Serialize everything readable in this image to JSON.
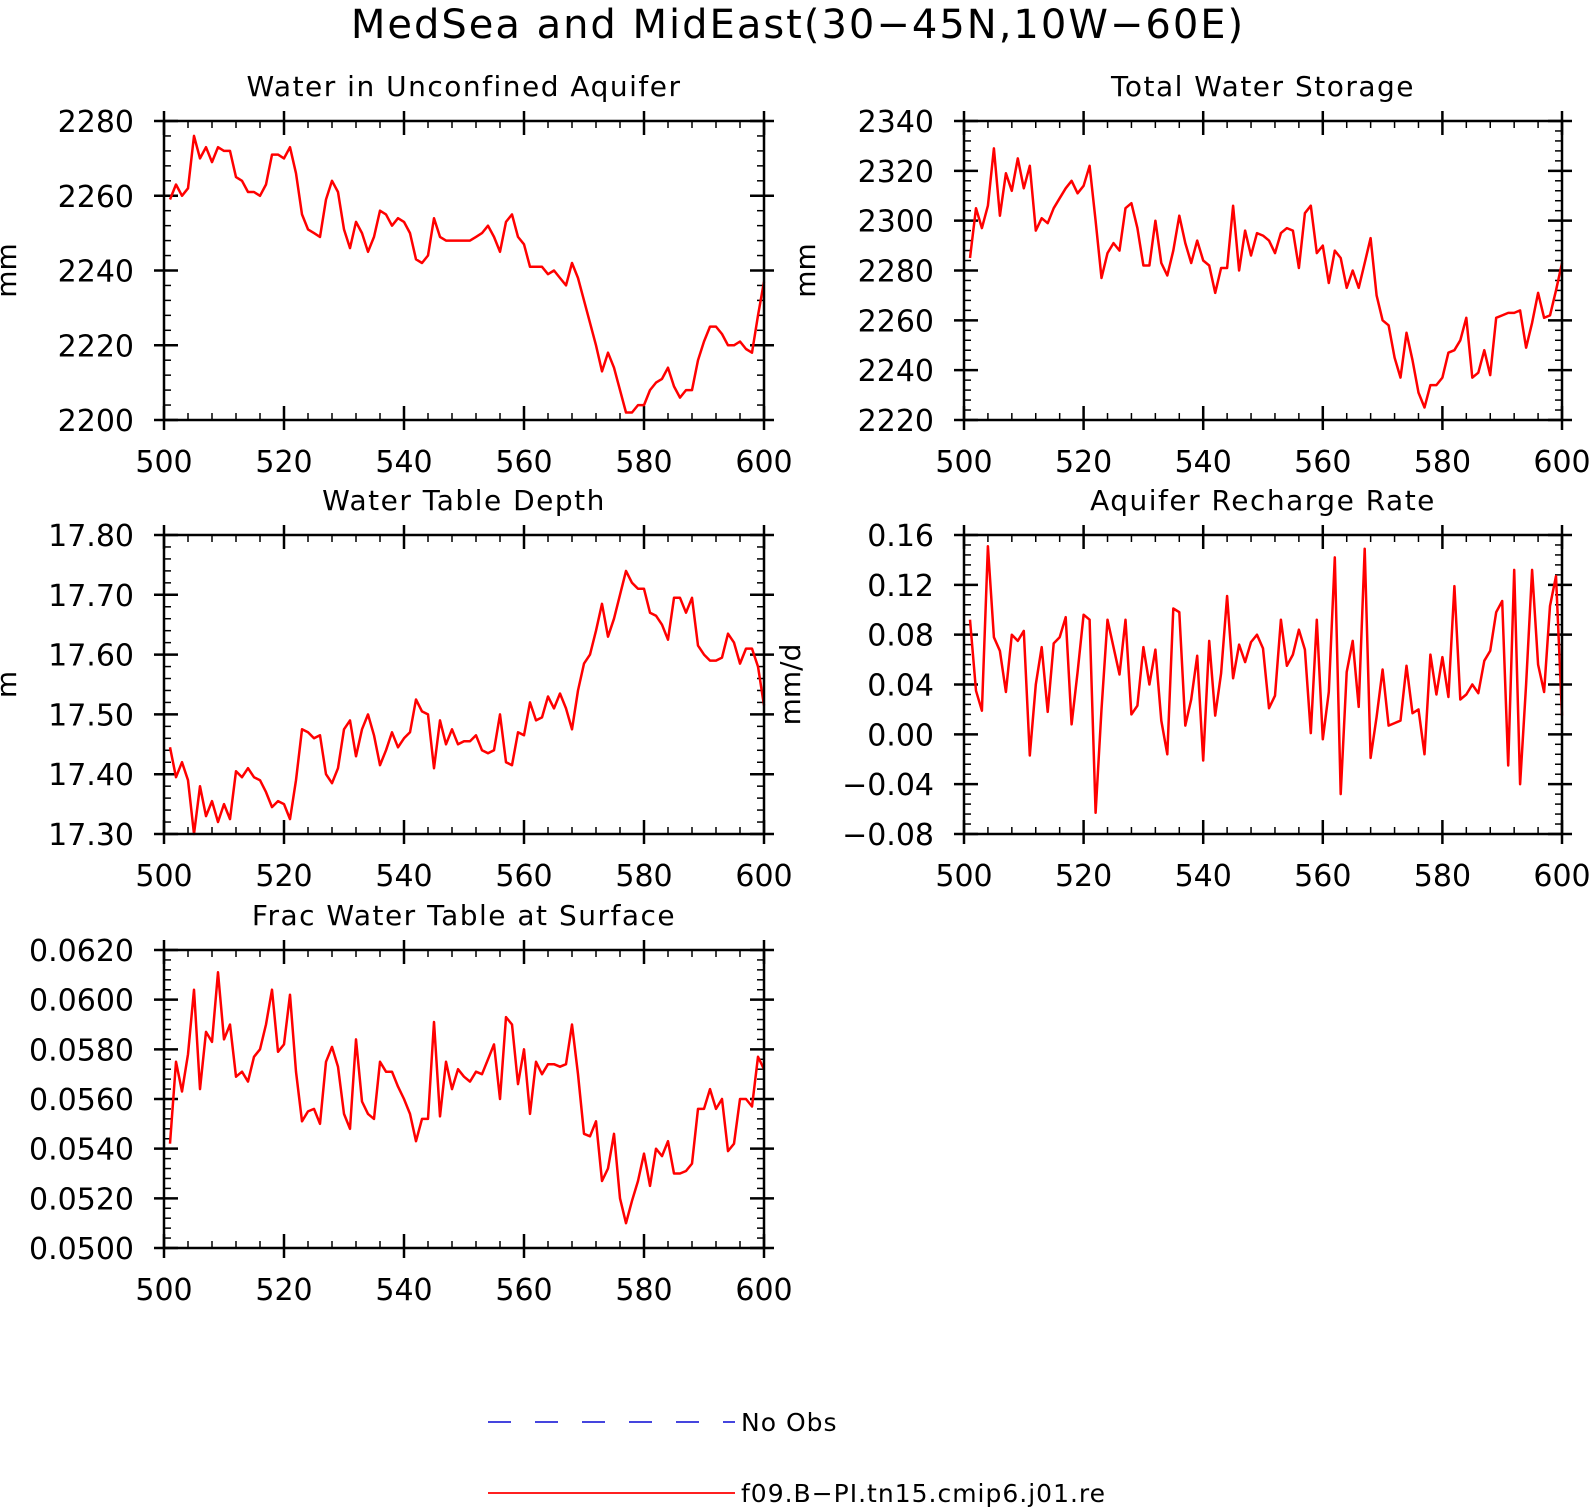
{
  "figure": {
    "title": "MedSea and MidEast(30-45N,10W-60E)"
  },
  "legend": {
    "entries": [
      {
        "label": "No Obs",
        "color": "#2b2bd9",
        "dash": true
      },
      {
        "label": "f09.B-PI.tn15.cmip6.j01.re",
        "color": "#ff0000",
        "dash": false
      }
    ]
  },
  "colors": {
    "series": "#ff0000"
  },
  "chart_data": [
    {
      "type": "line",
      "title": "Water in Unconfined Aquifer",
      "ylabel": "mm",
      "xlim": [
        500,
        600
      ],
      "ylim": [
        2200,
        2280
      ],
      "xticks": [
        500,
        520,
        540,
        560,
        580,
        600
      ],
      "xtick_labels": [
        "500",
        "520",
        "540",
        "560",
        "580",
        "600"
      ],
      "yticks": [
        2200,
        2220,
        2240,
        2260,
        2280
      ],
      "ytick_labels": [
        "2200",
        "2220",
        "2240",
        "2260",
        "2280"
      ],
      "x_start": 501,
      "series": [
        {
          "name": "f09.B-PI.tn15.cmip6.j01.re",
          "values": [
            2259,
            2263,
            2260,
            2262,
            2276,
            2270,
            2273,
            2269,
            2273,
            2272,
            2272,
            2265,
            2264,
            2261,
            2261,
            2260,
            2263,
            2271,
            2271,
            2270,
            2273,
            2266,
            2255,
            2251,
            2250,
            2249,
            2259,
            2264,
            2261,
            2251,
            2246,
            2253,
            2250,
            2245,
            2249,
            2256,
            2255,
            2252,
            2254,
            2253,
            2250,
            2243,
            2242,
            2244,
            2254,
            2249,
            2248,
            2248,
            2248,
            2248,
            2248,
            2249,
            2250,
            2252,
            2249,
            2245,
            2253,
            2255,
            2249,
            2247,
            2241,
            2241,
            2241,
            2239,
            2240,
            2238,
            2236,
            2242,
            2238,
            2232,
            2226,
            2220,
            2213,
            2218,
            2214,
            2208,
            2202,
            2202,
            2204,
            2204,
            2208,
            2210,
            2211,
            2214,
            2209,
            2206,
            2208,
            2208,
            2216,
            2221,
            2225,
            2225,
            2223,
            2220,
            2220,
            2221,
            2219,
            2218,
            2228,
            2237
          ]
        }
      ]
    },
    {
      "type": "line",
      "title": "Total Water Storage",
      "ylabel": "mm",
      "xlim": [
        500,
        600
      ],
      "ylim": [
        2220,
        2340
      ],
      "xticks": [
        500,
        520,
        540,
        560,
        580,
        600
      ],
      "xtick_labels": [
        "500",
        "520",
        "540",
        "560",
        "580",
        "600"
      ],
      "yticks": [
        2220,
        2240,
        2260,
        2280,
        2300,
        2320,
        2340
      ],
      "ytick_labels": [
        "2220",
        "2240",
        "2260",
        "2280",
        "2300",
        "2320",
        "2340"
      ],
      "x_start": 501,
      "series": [
        {
          "name": "f09.B-PI.tn15.cmip6.j01.re",
          "values": [
            2285,
            2305,
            2297,
            2306,
            2329,
            2302,
            2319,
            2312,
            2325,
            2313,
            2322,
            2296,
            2301,
            2299,
            2305,
            2309,
            2313,
            2316,
            2311,
            2314,
            2322,
            2300,
            2277,
            2287,
            2291,
            2288,
            2305,
            2307,
            2297,
            2282,
            2282,
            2300,
            2283,
            2278,
            2288,
            2302,
            2291,
            2283,
            2292,
            2284,
            2282,
            2271,
            2281,
            2281,
            2306,
            2280,
            2296,
            2286,
            2295,
            2294,
            2292,
            2287,
            2295,
            2297,
            2296,
            2281,
            2303,
            2306,
            2287,
            2290,
            2275,
            2288,
            2285,
            2273,
            2280,
            2273,
            2283,
            2293,
            2270,
            2260,
            2258,
            2245,
            2237,
            2255,
            2244,
            2231,
            2225,
            2234,
            2234,
            2237,
            2247,
            2248,
            2252,
            2261,
            2237,
            2239,
            2248,
            2238,
            2261,
            2262,
            2263,
            2263,
            2264,
            2249,
            2259,
            2271,
            2261,
            2262,
            2272,
            2283
          ]
        }
      ]
    },
    {
      "type": "line",
      "title": "Water Table Depth",
      "ylabel": "m",
      "xlim": [
        500,
        600
      ],
      "ylim": [
        17.3,
        17.8
      ],
      "xticks": [
        500,
        520,
        540,
        560,
        580,
        600
      ],
      "xtick_labels": [
        "500",
        "520",
        "540",
        "560",
        "580",
        "600"
      ],
      "yticks": [
        17.3,
        17.4,
        17.5,
        17.6,
        17.7,
        17.8
      ],
      "ytick_labels": [
        "17.30",
        "17.40",
        "17.50",
        "17.60",
        "17.70",
        "17.80"
      ],
      "x_start": 501,
      "series": [
        {
          "name": "f09.B-PI.tn15.cmip6.j01.re",
          "values": [
            17.445,
            17.395,
            17.42,
            17.39,
            17.3,
            17.38,
            17.33,
            17.355,
            17.32,
            17.35,
            17.325,
            17.405,
            17.395,
            17.41,
            17.395,
            17.39,
            17.37,
            17.345,
            17.355,
            17.35,
            17.325,
            17.39,
            17.475,
            17.47,
            17.46,
            17.465,
            17.4,
            17.385,
            17.41,
            17.475,
            17.49,
            17.43,
            17.475,
            17.5,
            17.465,
            17.415,
            17.44,
            17.47,
            17.445,
            17.46,
            17.47,
            17.525,
            17.505,
            17.5,
            17.41,
            17.49,
            17.45,
            17.475,
            17.45,
            17.455,
            17.455,
            17.465,
            17.44,
            17.435,
            17.44,
            17.5,
            17.42,
            17.415,
            17.47,
            17.465,
            17.52,
            17.49,
            17.495,
            17.53,
            17.51,
            17.535,
            17.51,
            17.475,
            17.54,
            17.585,
            17.6,
            17.64,
            17.685,
            17.63,
            17.66,
            17.7,
            17.74,
            17.72,
            17.71,
            17.71,
            17.67,
            17.665,
            17.65,
            17.625,
            17.695,
            17.695,
            17.67,
            17.695,
            17.615,
            17.6,
            17.59,
            17.59,
            17.595,
            17.635,
            17.62,
            17.585,
            17.61,
            17.61,
            17.58,
            17.515
          ]
        }
      ]
    },
    {
      "type": "line",
      "title": "Aquifer Recharge Rate",
      "ylabel": "mm/d",
      "xlim": [
        500,
        600
      ],
      "ylim": [
        -0.08,
        0.16
      ],
      "xticks": [
        500,
        520,
        540,
        560,
        580,
        600
      ],
      "xtick_labels": [
        "500",
        "520",
        "540",
        "560",
        "580",
        "600"
      ],
      "yticks": [
        -0.08,
        -0.04,
        0,
        0.04,
        0.08,
        0.12,
        0.16
      ],
      "ytick_labels": [
        "-0.08",
        "-0.04",
        "0.00",
        "0.04",
        "0.08",
        "0.12",
        "0.16"
      ],
      "x_start": 501,
      "series": [
        {
          "name": "f09.B-PI.tn15.cmip6.j01.re",
          "values": [
            0.092,
            0.035,
            0.019,
            0.151,
            0.078,
            0.067,
            0.034,
            0.08,
            0.075,
            0.083,
            -0.017,
            0.04,
            0.07,
            0.018,
            0.073,
            0.078,
            0.094,
            0.008,
            0.05,
            0.096,
            0.092,
            -0.063,
            0.02,
            0.092,
            0.07,
            0.048,
            0.092,
            0.016,
            0.023,
            0.07,
            0.04,
            0.068,
            0.011,
            -0.016,
            0.101,
            0.098,
            0.007,
            0.028,
            0.063,
            -0.021,
            0.075,
            0.015,
            0.049,
            0.111,
            0.045,
            0.072,
            0.058,
            0.074,
            0.08,
            0.069,
            0.021,
            0.031,
            0.092,
            0.055,
            0.064,
            0.084,
            0.068,
            0.001,
            0.092,
            -0.004,
            0.034,
            0.142,
            -0.048,
            0.05,
            0.075,
            0.022,
            0.149,
            -0.019,
            0.014,
            0.052,
            0.007,
            0.009,
            0.011,
            0.055,
            0.017,
            0.02,
            -0.016,
            0.064,
            0.032,
            0.062,
            0.03,
            0.119,
            0.028,
            0.032,
            0.04,
            0.033,
            0.059,
            0.067,
            0.098,
            0.107,
            -0.025,
            0.132,
            -0.04,
            0.04,
            0.132,
            0.056,
            0.034,
            0.103,
            0.127,
            0.015
          ]
        }
      ]
    },
    {
      "type": "line",
      "title": "Frac Water Table at Surface",
      "ylabel": "",
      "xlim": [
        500,
        600
      ],
      "ylim": [
        0.05,
        0.062
      ],
      "xticks": [
        500,
        520,
        540,
        560,
        580,
        600
      ],
      "xtick_labels": [
        "500",
        "520",
        "540",
        "560",
        "580",
        "600"
      ],
      "yticks": [
        0.05,
        0.052,
        0.054,
        0.056,
        0.058,
        0.06,
        0.062
      ],
      "ytick_labels": [
        "0.0500",
        "0.0520",
        "0.0540",
        "0.0560",
        "0.0580",
        "0.0600",
        "0.0620"
      ],
      "x_start": 501,
      "series": [
        {
          "name": "f09.B-PI.tn15.cmip6.j01.re",
          "values": [
            0.0542,
            0.0575,
            0.0563,
            0.0578,
            0.0604,
            0.0564,
            0.0587,
            0.0583,
            0.0611,
            0.0584,
            0.059,
            0.0569,
            0.0571,
            0.0567,
            0.0577,
            0.058,
            0.059,
            0.0604,
            0.0579,
            0.0582,
            0.0602,
            0.0571,
            0.0551,
            0.0555,
            0.0556,
            0.055,
            0.0575,
            0.0581,
            0.0573,
            0.0554,
            0.0548,
            0.0584,
            0.0559,
            0.0554,
            0.0552,
            0.0575,
            0.0571,
            0.0571,
            0.0565,
            0.056,
            0.0554,
            0.0543,
            0.0552,
            0.0552,
            0.0591,
            0.0553,
            0.0575,
            0.0564,
            0.0572,
            0.0569,
            0.0567,
            0.0571,
            0.057,
            0.0576,
            0.0582,
            0.056,
            0.0593,
            0.059,
            0.0566,
            0.058,
            0.0554,
            0.0575,
            0.057,
            0.0574,
            0.0574,
            0.0573,
            0.0574,
            0.059,
            0.057,
            0.0546,
            0.0545,
            0.0551,
            0.0527,
            0.0532,
            0.0546,
            0.052,
            0.051,
            0.0519,
            0.0527,
            0.0538,
            0.0525,
            0.054,
            0.0537,
            0.0543,
            0.053,
            0.053,
            0.0531,
            0.0534,
            0.0556,
            0.0556,
            0.0564,
            0.0556,
            0.056,
            0.0539,
            0.0542,
            0.056,
            0.056,
            0.0557,
            0.0577,
            0.0572
          ]
        }
      ]
    }
  ]
}
